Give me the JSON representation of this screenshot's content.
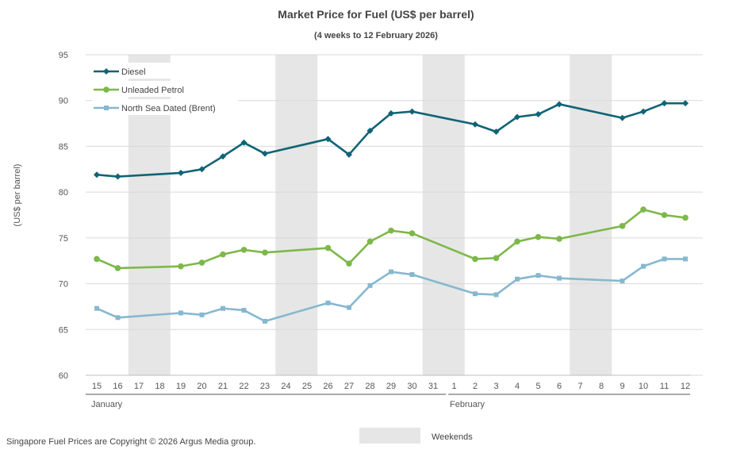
{
  "chart_data": {
    "type": "line",
    "title": "Market Price for Fuel (US$ per barrel)",
    "subtitle": "(4 weeks to 12 February 2026)",
    "ylabel": "(US$ per barrel)",
    "ylim": [
      60,
      95
    ],
    "yticks": [
      60,
      65,
      70,
      75,
      80,
      85,
      90,
      95
    ],
    "grid": true,
    "legend_position": "top-left",
    "x_labels": [
      "15",
      "16",
      "17",
      "18",
      "19",
      "20",
      "21",
      "22",
      "23",
      "24",
      "25",
      "26",
      "27",
      "28",
      "29",
      "30",
      "31",
      "1",
      "2",
      "3",
      "4",
      "5",
      "6",
      "7",
      "8",
      "9",
      "10",
      "11",
      "12"
    ],
    "months": [
      "January",
      "February"
    ],
    "weekend_ranges": [
      [
        "17",
        "18"
      ],
      [
        "24",
        "25"
      ],
      [
        "31",
        "1"
      ],
      [
        "7",
        "8"
      ]
    ],
    "weekends_label": "Weekends",
    "series": [
      {
        "name": "Diesel",
        "color": "#0f6475",
        "marker": "diamond",
        "points": [
          {
            "x": "15",
            "y": 81.9
          },
          {
            "x": "16",
            "y": 81.7
          },
          {
            "x": "19",
            "y": 82.1
          },
          {
            "x": "20",
            "y": 82.5
          },
          {
            "x": "21",
            "y": 83.9
          },
          {
            "x": "22",
            "y": 85.4
          },
          {
            "x": "23",
            "y": 84.2
          },
          {
            "x": "26",
            "y": 85.8
          },
          {
            "x": "27",
            "y": 84.1
          },
          {
            "x": "28",
            "y": 86.7
          },
          {
            "x": "29",
            "y": 88.6
          },
          {
            "x": "30",
            "y": 88.8
          },
          {
            "x": "2",
            "y": 87.4
          },
          {
            "x": "3",
            "y": 86.6
          },
          {
            "x": "4",
            "y": 88.2
          },
          {
            "x": "5",
            "y": 88.5
          },
          {
            "x": "6",
            "y": 89.6
          },
          {
            "x": "9",
            "y": 88.1
          },
          {
            "x": "10",
            "y": 88.8
          },
          {
            "x": "11",
            "y": 89.7
          },
          {
            "x": "12",
            "y": 89.7
          }
        ]
      },
      {
        "name": "Unleaded Petrol",
        "color": "#7db84a",
        "marker": "circle",
        "points": [
          {
            "x": "15",
            "y": 72.7
          },
          {
            "x": "16",
            "y": 71.7
          },
          {
            "x": "19",
            "y": 71.9
          },
          {
            "x": "20",
            "y": 72.3
          },
          {
            "x": "21",
            "y": 73.2
          },
          {
            "x": "22",
            "y": 73.7
          },
          {
            "x": "23",
            "y": 73.4
          },
          {
            "x": "26",
            "y": 73.9
          },
          {
            "x": "27",
            "y": 72.2
          },
          {
            "x": "28",
            "y": 74.6
          },
          {
            "x": "29",
            "y": 75.8
          },
          {
            "x": "30",
            "y": 75.5
          },
          {
            "x": "2",
            "y": 72.7
          },
          {
            "x": "3",
            "y": 72.8
          },
          {
            "x": "4",
            "y": 74.6
          },
          {
            "x": "5",
            "y": 75.1
          },
          {
            "x": "6",
            "y": 74.9
          },
          {
            "x": "9",
            "y": 76.3
          },
          {
            "x": "10",
            "y": 78.1
          },
          {
            "x": "11",
            "y": 77.5
          },
          {
            "x": "12",
            "y": 77.2
          }
        ]
      },
      {
        "name": "North Sea Dated (Brent)",
        "color": "#86b8cf",
        "marker": "square",
        "points": [
          {
            "x": "15",
            "y": 67.3
          },
          {
            "x": "16",
            "y": 66.3
          },
          {
            "x": "19",
            "y": 66.8
          },
          {
            "x": "20",
            "y": 66.6
          },
          {
            "x": "21",
            "y": 67.3
          },
          {
            "x": "22",
            "y": 67.1
          },
          {
            "x": "23",
            "y": 65.9
          },
          {
            "x": "26",
            "y": 67.9
          },
          {
            "x": "27",
            "y": 67.4
          },
          {
            "x": "28",
            "y": 69.8
          },
          {
            "x": "29",
            "y": 71.3
          },
          {
            "x": "30",
            "y": 71.0
          },
          {
            "x": "2",
            "y": 68.9
          },
          {
            "x": "3",
            "y": 68.8
          },
          {
            "x": "4",
            "y": 70.5
          },
          {
            "x": "5",
            "y": 70.9
          },
          {
            "x": "6",
            "y": 70.6
          },
          {
            "x": "9",
            "y": 70.3
          },
          {
            "x": "10",
            "y": 71.9
          },
          {
            "x": "11",
            "y": 72.7
          },
          {
            "x": "12",
            "y": 72.7
          }
        ]
      }
    ]
  },
  "footnote": "Singapore Fuel Prices are Copyright © 2026 Argus Media group."
}
